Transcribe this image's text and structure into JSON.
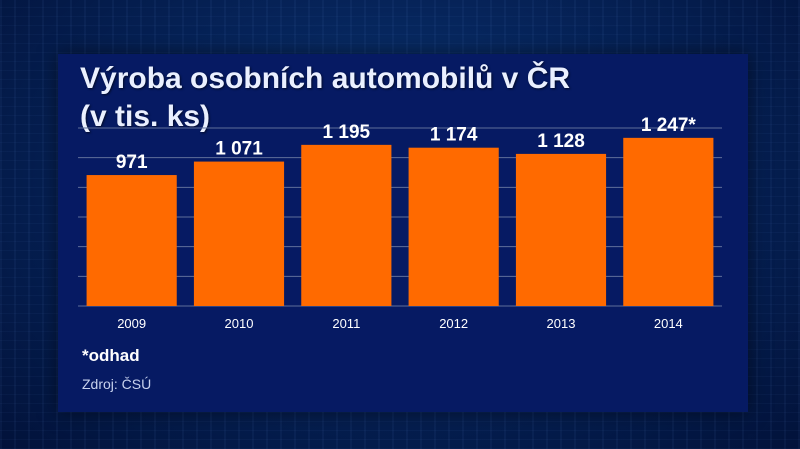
{
  "colors": {
    "bar": "#ff6a00",
    "panel": "#061a63",
    "grid": "#5f6f9a",
    "value_text": "#ffffff",
    "tick_text": "#ffffff"
  },
  "chart_data": {
    "type": "bar",
    "title": "Výroba osobních automobilů v ČR",
    "subtitle": "(v tis. ks)",
    "categories": [
      "2009",
      "2010",
      "2011",
      "2012",
      "2013",
      "2014"
    ],
    "values": [
      971,
      1071,
      1195,
      1174,
      1128,
      1247
    ],
    "value_labels": [
      "971",
      "1 071",
      "1 195",
      "1 174",
      "1 128",
      "1 247*"
    ],
    "xlabel": "",
    "ylabel": "",
    "ylim": [
      0,
      1320
    ],
    "grid": true,
    "footnote": "*odhad",
    "source": "Zdroj: ČSÚ"
  }
}
